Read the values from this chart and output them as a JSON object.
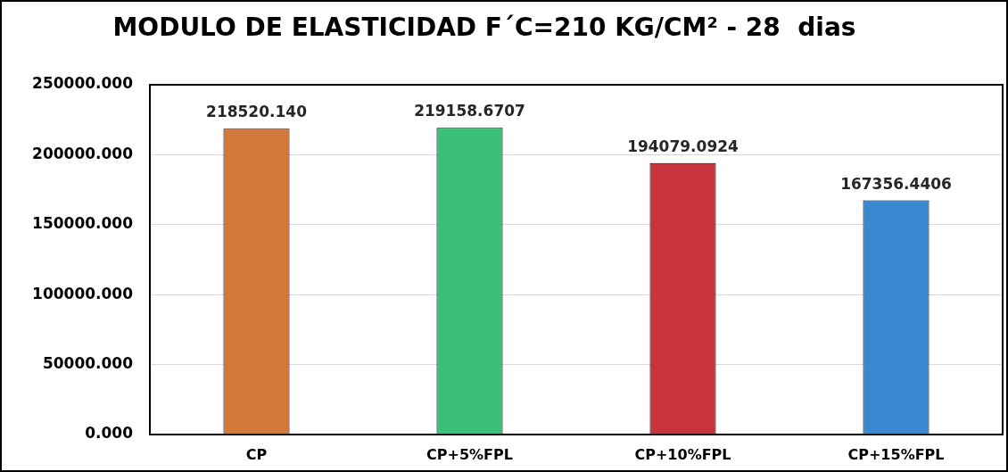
{
  "chart_data": {
    "type": "bar",
    "title": "MODULO DE ELASTICIDAD F´C=210 KG/CM² - 28  dias",
    "categories": [
      "CP",
      "CP+5%FPL",
      "CP+10%FPL",
      "CP+15%FPL"
    ],
    "values": [
      218520.14,
      219158.6707,
      194079.0924,
      167356.4406
    ],
    "colors": [
      "#d2783a",
      "#3cbf78",
      "#c8343e",
      "#3a88cf"
    ],
    "value_labels": [
      "218520.140",
      "219158.6707",
      "194079.0924",
      "167356.4406"
    ],
    "ylim": [
      0,
      250000
    ],
    "yticks": [
      {
        "value": 0,
        "label": "0.000"
      },
      {
        "value": 50000,
        "label": "50000.000"
      },
      {
        "value": 100000,
        "label": "100000.000"
      },
      {
        "value": 150000,
        "label": "150000.000"
      },
      {
        "value": 200000,
        "label": "200000.000"
      },
      {
        "value": 250000,
        "label": "250000.000"
      }
    ],
    "grid": "y"
  }
}
